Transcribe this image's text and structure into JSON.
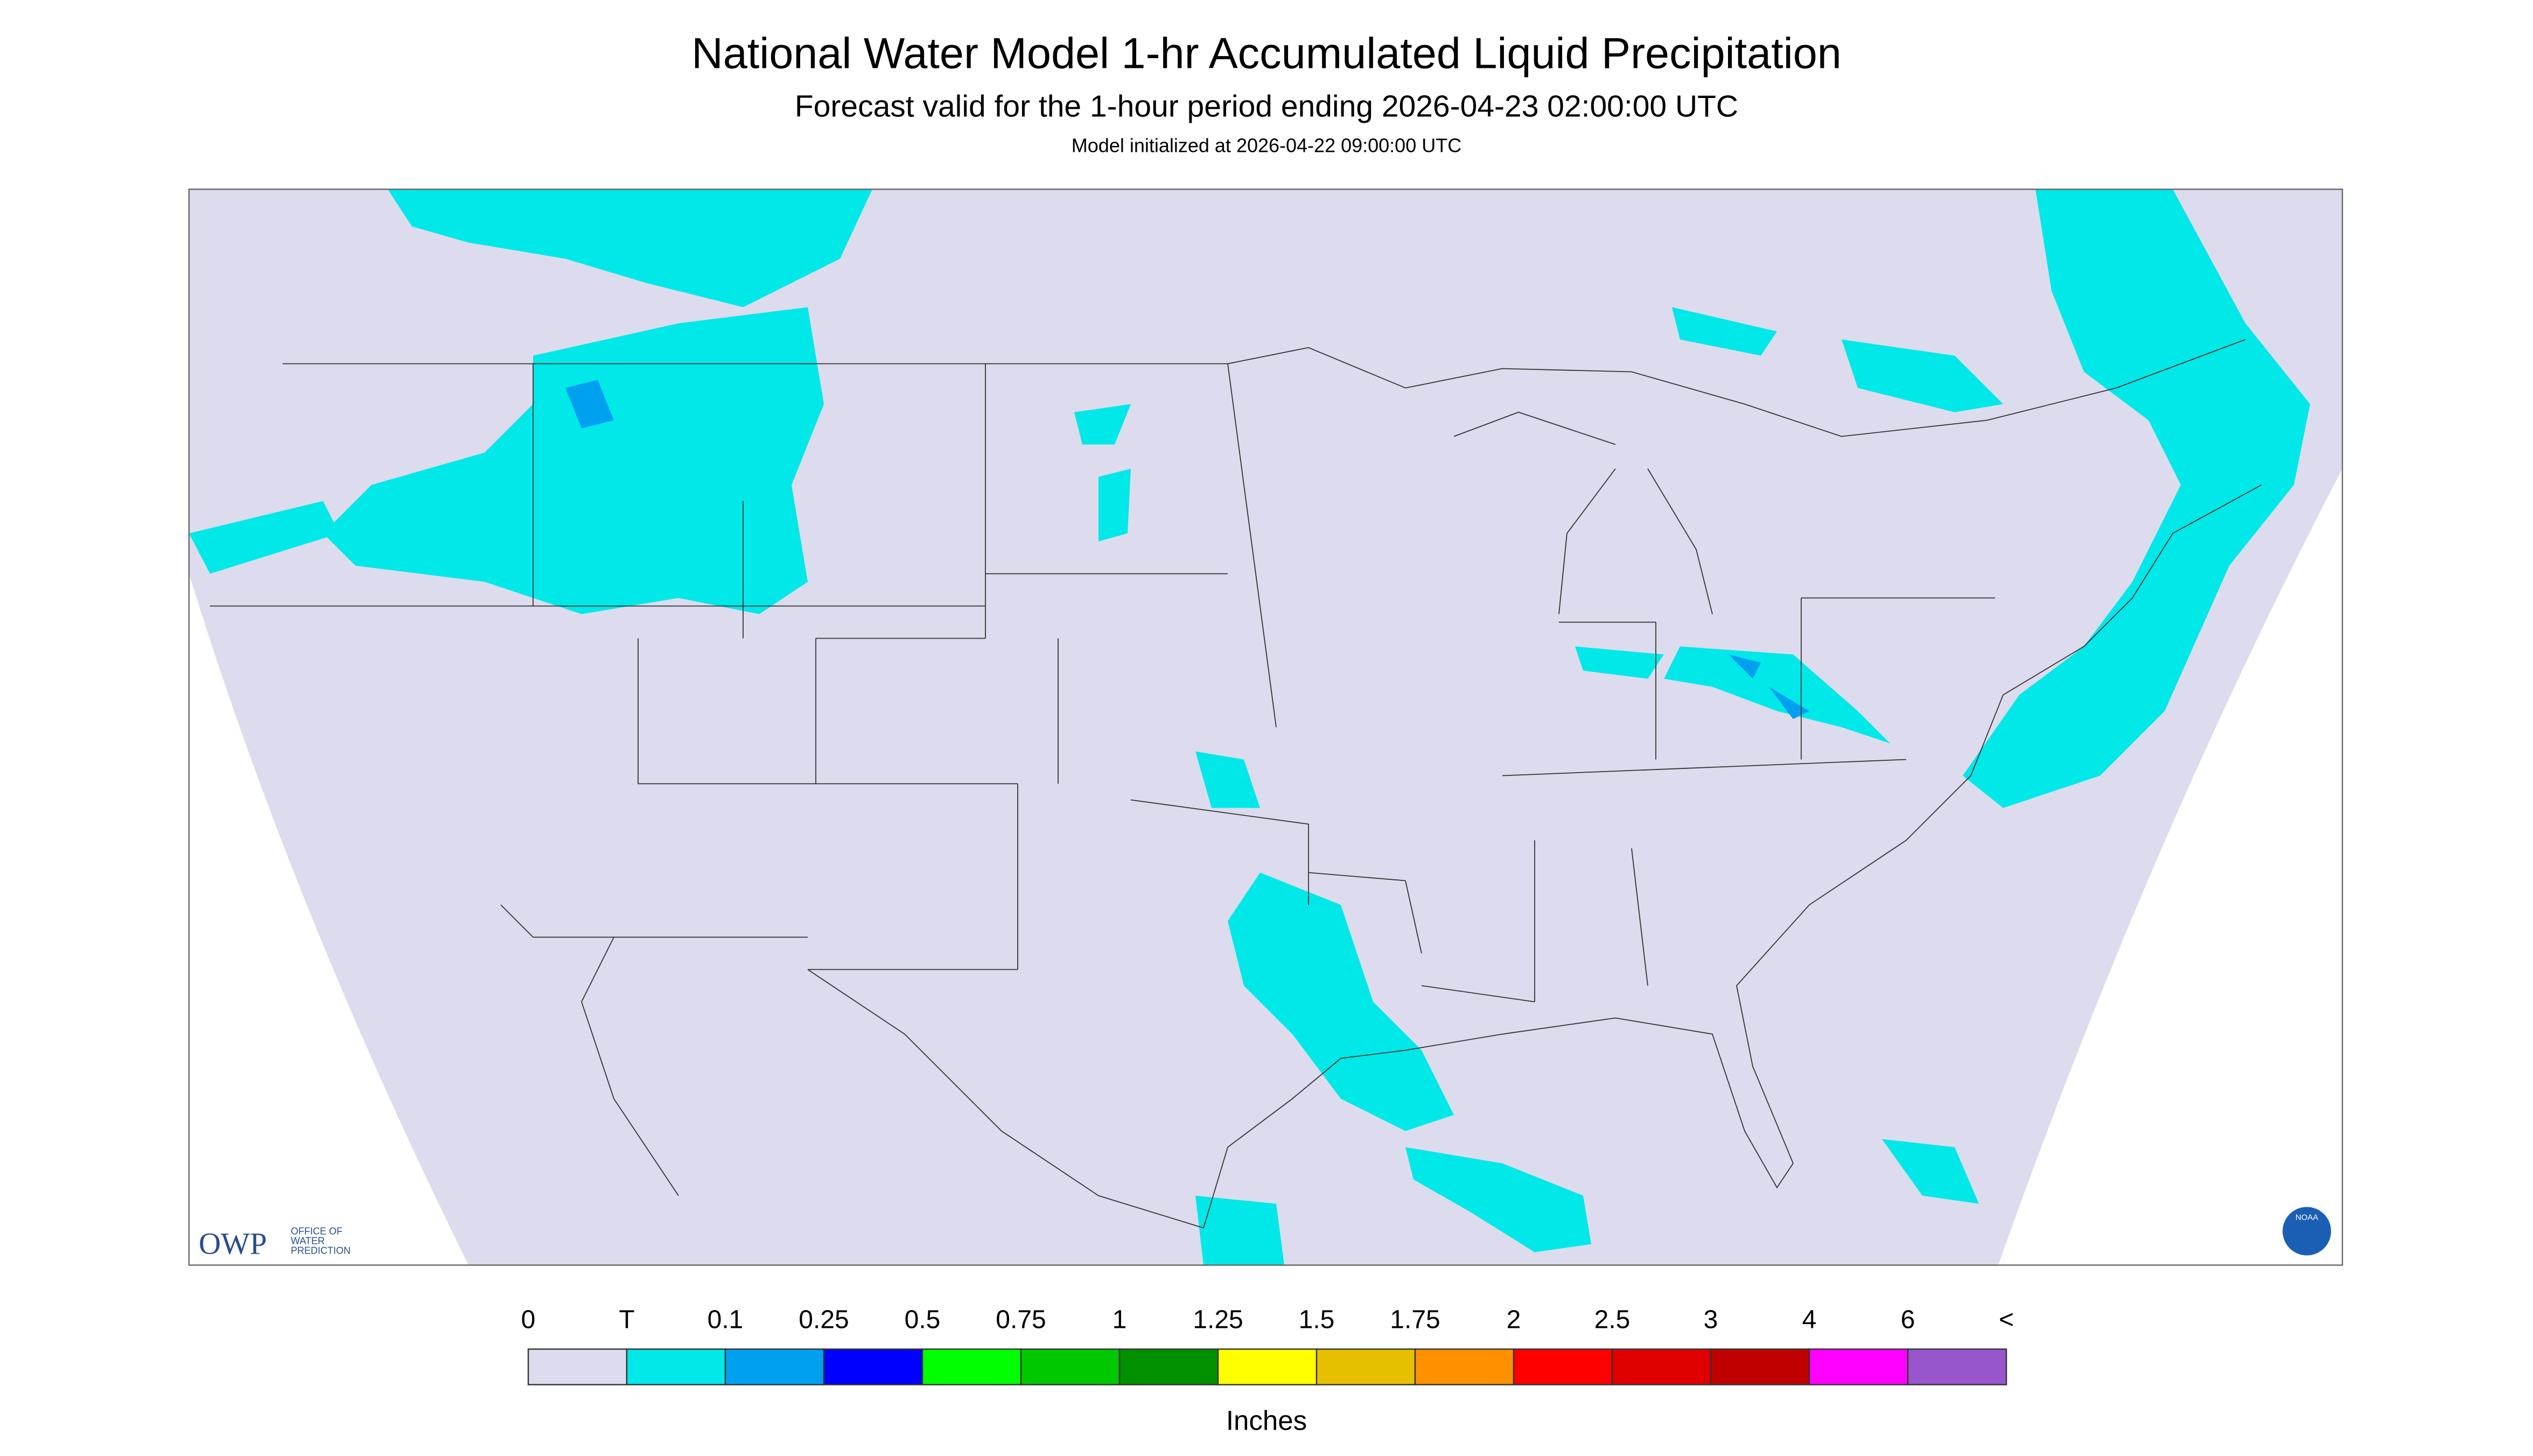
{
  "header": {
    "title": "National Water Model 1-hr Accumulated Liquid Precipitation",
    "subtitle": "Forecast valid for the 1-hour period ending 2026-04-23 02:00:00 UTC",
    "note": "Model initialized at 2026-04-22 09:00:00 UTC"
  },
  "logo": {
    "owp": "OWP",
    "office": [
      "OFFICE OF",
      "WATER",
      "PREDICTION"
    ],
    "noaa": "NOAA"
  },
  "legend": {
    "labels": [
      "0",
      "T",
      "0.1",
      "0.25",
      "0.5",
      "0.75",
      "1",
      "1.25",
      "1.5",
      "1.75",
      "2",
      "2.5",
      "3",
      "4",
      "6",
      "<"
    ],
    "colors": [
      "#dcdcee",
      "#00e8e8",
      "#00a0f0",
      "#0000ff",
      "#00ff00",
      "#00c800",
      "#009000",
      "#ffff00",
      "#e6c000",
      "#ff9000",
      "#ff0000",
      "#e00000",
      "#c00000",
      "#ff00ff",
      "#9955cc"
    ],
    "title": "Inches"
  }
}
